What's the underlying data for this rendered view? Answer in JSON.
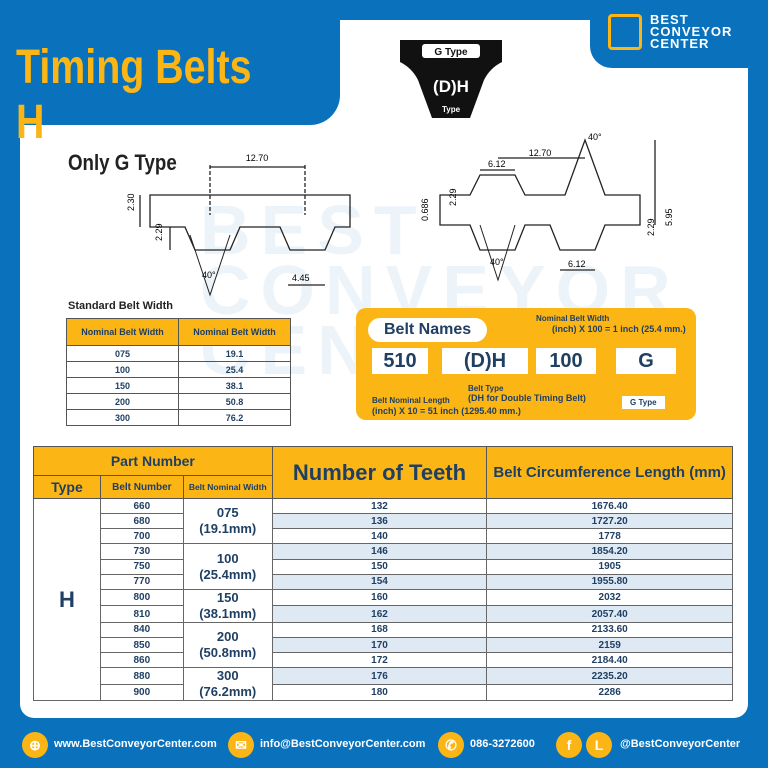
{
  "title": "Timing Belts H",
  "logo": {
    "line1": "BEST",
    "line2": "CONVEYOR",
    "line3": "CENTER"
  },
  "gtype_badge": {
    "top": "G Type",
    "mid": "(D)H",
    "bottom": "Type"
  },
  "only_g": "Only G Type",
  "diagram_left": {
    "pitch": "12.70",
    "h1": "2.30",
    "h2": "2.29",
    "angle": "40°",
    "tooth": "4.45"
  },
  "diagram_right": {
    "angle_top": "40°",
    "pitch": "12.70",
    "top_w": "6.12",
    "h1": "2.29",
    "h2": "0.686",
    "total": "5.95",
    "h3": "2.29",
    "angle": "40°",
    "bottom_w": "6.12"
  },
  "std_table": {
    "label": "Standard Belt Width",
    "headers": [
      "Nominal Belt Width",
      "Nominal Belt Width"
    ],
    "rows": [
      [
        "075",
        "19.1"
      ],
      [
        "100",
        "25.4"
      ],
      [
        "150",
        "38.1"
      ],
      [
        "200",
        "50.8"
      ],
      [
        "300",
        "76.2"
      ]
    ]
  },
  "belt_names": {
    "title": "Belt Names",
    "boxes": [
      "510",
      "(D)H",
      "100",
      "G"
    ],
    "width_note1": "Nominal Belt Width",
    "width_note2": "(inch) X 100 = 1 inch (25.4 mm.)",
    "type_note1": "Belt Type",
    "type_note2": "(DH for Double Timing Belt)",
    "length_note1": "Belt Nominal Length",
    "length_note2": "(inch) X 10 = 51 inch (1295.40 mm.)",
    "g_note": "G Type"
  },
  "main_table": {
    "part_number": "Part Number",
    "type": "Type",
    "belt_number": "Belt Number",
    "belt_width": "Belt Nominal Width",
    "teeth": "Number of Teeth",
    "circ": "Belt Circumference Length (mm)",
    "type_value": "H",
    "widths": [
      [
        "075",
        "(19.1mm)"
      ],
      [
        "100",
        "(25.4mm)"
      ],
      [
        "150",
        "(38.1mm)"
      ],
      [
        "200",
        "(50.8mm)"
      ],
      [
        "300",
        "(76.2mm)"
      ]
    ],
    "rows": [
      [
        "660",
        "132",
        "1676.40"
      ],
      [
        "680",
        "136",
        "1727.20"
      ],
      [
        "700",
        "140",
        "1778"
      ],
      [
        "730",
        "146",
        "1854.20"
      ],
      [
        "750",
        "150",
        "1905"
      ],
      [
        "770",
        "154",
        "1955.80"
      ],
      [
        "800",
        "160",
        "2032"
      ],
      [
        "810",
        "162",
        "2057.40"
      ],
      [
        "840",
        "168",
        "2133.60"
      ],
      [
        "850",
        "170",
        "2159"
      ],
      [
        "860",
        "172",
        "2184.40"
      ],
      [
        "880",
        "176",
        "2235.20"
      ],
      [
        "900",
        "180",
        "2286"
      ]
    ]
  },
  "footer": {
    "website": "www.BestConveyorCenter.com",
    "email": "info@BestConveyorCenter.com",
    "phone": "086-3272600",
    "social": "@BestConveyorCenter"
  },
  "colors": {
    "blue": "#0a72bd",
    "yellow": "#fbb514",
    "text": "#1f3f63"
  }
}
